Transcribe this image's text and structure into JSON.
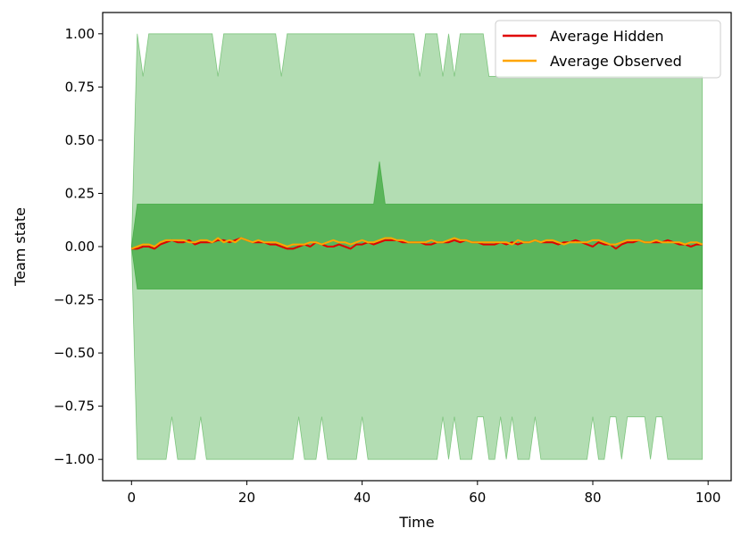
{
  "chart_data": {
    "type": "line",
    "xlabel": "Time",
    "ylabel": "Team state",
    "xlim": [
      -5,
      104
    ],
    "ylim": [
      -1.1,
      1.1
    ],
    "x_ticks": [
      0,
      20,
      40,
      60,
      80,
      100
    ],
    "x_tick_labels": [
      "0",
      "20",
      "40",
      "60",
      "80",
      "100"
    ],
    "y_ticks": [
      1.0,
      0.75,
      0.5,
      0.25,
      0.0,
      -0.25,
      -0.5,
      -0.75,
      -1.0
    ],
    "y_tick_labels": [
      "1.00",
      "0.75",
      "0.50",
      "0.25",
      "0.00",
      "−0.25",
      "−0.50",
      "−0.75",
      "−1.00"
    ],
    "legend_position": "top-right",
    "colors": {
      "hidden": "#e00000",
      "observed": "#ffa500",
      "band_fill": "#2ca02c",
      "band_edge": "#2ca02c"
    },
    "x": [
      0,
      1,
      2,
      3,
      4,
      5,
      6,
      7,
      8,
      9,
      10,
      11,
      12,
      13,
      14,
      15,
      16,
      17,
      18,
      19,
      20,
      21,
      22,
      23,
      24,
      25,
      26,
      27,
      28,
      29,
      30,
      31,
      32,
      33,
      34,
      35,
      36,
      37,
      38,
      39,
      40,
      41,
      42,
      43,
      44,
      45,
      46,
      47,
      48,
      49,
      50,
      51,
      52,
      53,
      54,
      55,
      56,
      57,
      58,
      59,
      60,
      61,
      62,
      63,
      64,
      65,
      66,
      67,
      68,
      69,
      70,
      71,
      72,
      73,
      74,
      75,
      76,
      77,
      78,
      79,
      80,
      81,
      82,
      83,
      84,
      85,
      86,
      87,
      88,
      89,
      90,
      91,
      92,
      93,
      94,
      95,
      96,
      97,
      98,
      99
    ],
    "series": [
      {
        "name": "Average Hidden",
        "values": [
          -0.01,
          -0.01,
          0.0,
          0.0,
          -0.01,
          0.01,
          0.02,
          0.03,
          0.02,
          0.02,
          0.03,
          0.01,
          0.02,
          0.02,
          0.02,
          0.03,
          0.03,
          0.02,
          0.03,
          0.04,
          0.03,
          0.02,
          0.02,
          0.02,
          0.01,
          0.01,
          0.0,
          -0.01,
          -0.01,
          0.0,
          0.01,
          0.0,
          0.02,
          0.01,
          0.0,
          0.0,
          0.01,
          0.0,
          -0.01,
          0.01,
          0.01,
          0.02,
          0.01,
          0.02,
          0.03,
          0.03,
          0.03,
          0.02,
          0.02,
          0.02,
          0.02,
          0.01,
          0.01,
          0.02,
          0.02,
          0.02,
          0.03,
          0.02,
          0.03,
          0.02,
          0.02,
          0.01,
          0.01,
          0.01,
          0.02,
          0.01,
          0.02,
          0.01,
          0.02,
          0.02,
          0.03,
          0.02,
          0.02,
          0.02,
          0.01,
          0.02,
          0.02,
          0.03,
          0.02,
          0.01,
          0.0,
          0.02,
          0.01,
          0.01,
          -0.01,
          0.01,
          0.02,
          0.02,
          0.03,
          0.02,
          0.02,
          0.02,
          0.02,
          0.03,
          0.02,
          0.01,
          0.01,
          0.0,
          0.01,
          0.01
        ]
      },
      {
        "name": "Average Observed",
        "values": [
          -0.01,
          0.0,
          0.01,
          0.01,
          0.0,
          0.02,
          0.03,
          0.03,
          0.03,
          0.03,
          0.02,
          0.02,
          0.03,
          0.03,
          0.02,
          0.04,
          0.02,
          0.03,
          0.02,
          0.04,
          0.03,
          0.02,
          0.03,
          0.02,
          0.02,
          0.02,
          0.01,
          0.0,
          0.01,
          0.01,
          0.01,
          0.02,
          0.02,
          0.01,
          0.02,
          0.03,
          0.02,
          0.02,
          0.01,
          0.02,
          0.03,
          0.02,
          0.02,
          0.03,
          0.04,
          0.04,
          0.03,
          0.03,
          0.02,
          0.02,
          0.02,
          0.02,
          0.03,
          0.02,
          0.02,
          0.03,
          0.04,
          0.03,
          0.03,
          0.02,
          0.02,
          0.02,
          0.02,
          0.02,
          0.02,
          0.02,
          0.01,
          0.03,
          0.02,
          0.02,
          0.03,
          0.02,
          0.03,
          0.03,
          0.02,
          0.01,
          0.02,
          0.02,
          0.02,
          0.02,
          0.03,
          0.03,
          0.02,
          0.01,
          0.01,
          0.02,
          0.03,
          0.03,
          0.03,
          0.02,
          0.02,
          0.03,
          0.02,
          0.02,
          0.02,
          0.02,
          0.01,
          0.02,
          0.02,
          0.01
        ]
      }
    ],
    "inner_band": {
      "upper": [
        0.0,
        0.2,
        0.2,
        0.2,
        0.2,
        0.2,
        0.2,
        0.2,
        0.2,
        0.2,
        0.2,
        0.2,
        0.2,
        0.2,
        0.2,
        0.2,
        0.2,
        0.2,
        0.2,
        0.2,
        0.2,
        0.2,
        0.2,
        0.2,
        0.2,
        0.2,
        0.2,
        0.2,
        0.2,
        0.2,
        0.2,
        0.2,
        0.2,
        0.2,
        0.2,
        0.2,
        0.2,
        0.2,
        0.2,
        0.2,
        0.2,
        0.2,
        0.2,
        0.4,
        0.2,
        0.2,
        0.2,
        0.2,
        0.2,
        0.2,
        0.2,
        0.2,
        0.2,
        0.2,
        0.2,
        0.2,
        0.2,
        0.2,
        0.2,
        0.2,
        0.2,
        0.2,
        0.2,
        0.2,
        0.2,
        0.2,
        0.2,
        0.2,
        0.2,
        0.2,
        0.2,
        0.2,
        0.2,
        0.2,
        0.2,
        0.2,
        0.2,
        0.2,
        0.2,
        0.2,
        0.2,
        0.2,
        0.2,
        0.2,
        0.2,
        0.2,
        0.2,
        0.2,
        0.2,
        0.2,
        0.2,
        0.2,
        0.2,
        0.2,
        0.2,
        0.2,
        0.2,
        0.2,
        0.2,
        0.2
      ],
      "lower": [
        0.0,
        -0.2,
        -0.2,
        -0.2,
        -0.2,
        -0.2,
        -0.2,
        -0.2,
        -0.2,
        -0.2,
        -0.2,
        -0.2,
        -0.2,
        -0.2,
        -0.2,
        -0.2,
        -0.2,
        -0.2,
        -0.2,
        -0.2,
        -0.2,
        -0.2,
        -0.2,
        -0.2,
        -0.2,
        -0.2,
        -0.2,
        -0.2,
        -0.2,
        -0.2,
        -0.2,
        -0.2,
        -0.2,
        -0.2,
        -0.2,
        -0.2,
        -0.2,
        -0.2,
        -0.2,
        -0.2,
        -0.2,
        -0.2,
        -0.2,
        -0.2,
        -0.2,
        -0.2,
        -0.2,
        -0.2,
        -0.2,
        -0.2,
        -0.2,
        -0.2,
        -0.2,
        -0.2,
        -0.2,
        -0.2,
        -0.2,
        -0.2,
        -0.2,
        -0.2,
        -0.2,
        -0.2,
        -0.2,
        -0.2,
        -0.2,
        -0.2,
        -0.2,
        -0.2,
        -0.2,
        -0.2,
        -0.2,
        -0.2,
        -0.2,
        -0.2,
        -0.2,
        -0.2,
        -0.2,
        -0.2,
        -0.2,
        -0.2,
        -0.2,
        -0.2,
        -0.2,
        -0.2,
        -0.2,
        -0.2,
        -0.2,
        -0.2,
        -0.2,
        -0.2,
        -0.2,
        -0.2,
        -0.2,
        -0.2,
        -0.2,
        -0.2,
        -0.2,
        -0.2,
        -0.2,
        -0.2
      ]
    },
    "outer_band": {
      "upper": [
        0.0,
        1.0,
        0.8,
        1.0,
        1.0,
        1.0,
        1.0,
        1.0,
        1.0,
        1.0,
        1.0,
        1.0,
        1.0,
        1.0,
        1.0,
        0.8,
        1.0,
        1.0,
        1.0,
        1.0,
        1.0,
        1.0,
        1.0,
        1.0,
        1.0,
        1.0,
        0.8,
        1.0,
        1.0,
        1.0,
        1.0,
        1.0,
        1.0,
        1.0,
        1.0,
        1.0,
        1.0,
        1.0,
        1.0,
        1.0,
        1.0,
        1.0,
        1.0,
        1.0,
        1.0,
        1.0,
        1.0,
        1.0,
        1.0,
        1.0,
        0.8,
        1.0,
        1.0,
        1.0,
        0.8,
        1.0,
        0.8,
        1.0,
        1.0,
        1.0,
        1.0,
        1.0,
        0.8,
        0.8,
        0.8,
        0.8,
        0.8,
        0.8,
        0.8,
        0.8,
        0.8,
        0.8,
        0.8,
        0.8,
        0.8,
        0.8,
        0.8,
        0.8,
        0.8,
        0.8,
        0.8,
        0.8,
        0.8,
        0.8,
        0.8,
        0.8,
        0.8,
        0.8,
        0.8,
        0.8,
        0.8,
        0.8,
        0.8,
        0.8,
        0.8,
        0.8,
        0.8,
        0.8,
        0.8,
        0.8
      ],
      "lower": [
        0.0,
        -1.0,
        -1.0,
        -1.0,
        -1.0,
        -1.0,
        -1.0,
        -0.8,
        -1.0,
        -1.0,
        -1.0,
        -1.0,
        -0.8,
        -1.0,
        -1.0,
        -1.0,
        -1.0,
        -1.0,
        -1.0,
        -1.0,
        -1.0,
        -1.0,
        -1.0,
        -1.0,
        -1.0,
        -1.0,
        -1.0,
        -1.0,
        -1.0,
        -0.8,
        -1.0,
        -1.0,
        -1.0,
        -0.8,
        -1.0,
        -1.0,
        -1.0,
        -1.0,
        -1.0,
        -1.0,
        -0.8,
        -1.0,
        -1.0,
        -1.0,
        -1.0,
        -1.0,
        -1.0,
        -1.0,
        -1.0,
        -1.0,
        -1.0,
        -1.0,
        -1.0,
        -1.0,
        -0.8,
        -1.0,
        -0.8,
        -1.0,
        -1.0,
        -1.0,
        -0.8,
        -0.8,
        -1.0,
        -1.0,
        -0.8,
        -1.0,
        -0.8,
        -1.0,
        -1.0,
        -1.0,
        -0.8,
        -1.0,
        -1.0,
        -1.0,
        -1.0,
        -1.0,
        -1.0,
        -1.0,
        -1.0,
        -1.0,
        -0.8,
        -1.0,
        -1.0,
        -0.8,
        -0.8,
        -1.0,
        -0.8,
        -0.8,
        -0.8,
        -0.8,
        -1.0,
        -0.8,
        -0.8,
        -1.0,
        -1.0,
        -1.0,
        -1.0,
        -1.0,
        -1.0,
        -1.0
      ]
    }
  }
}
